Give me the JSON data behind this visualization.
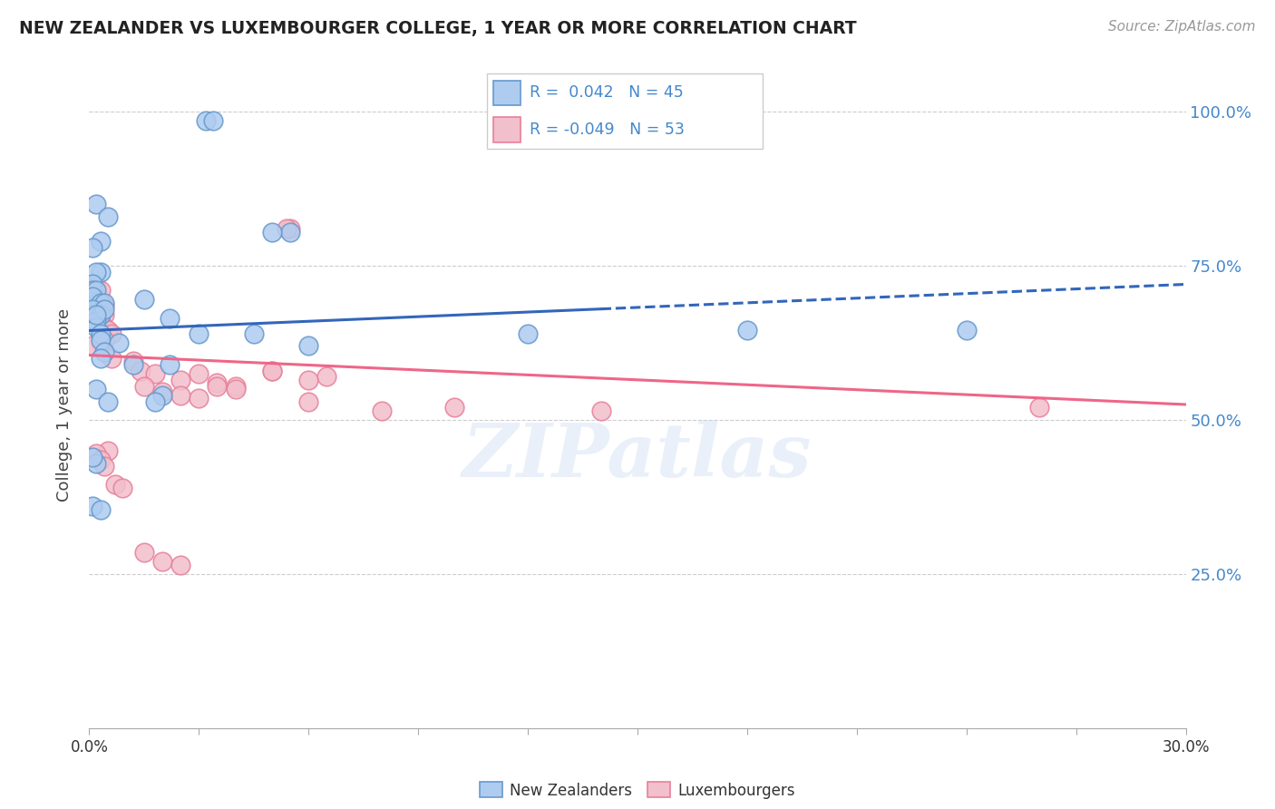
{
  "title": "NEW ZEALANDER VS LUXEMBOURGER COLLEGE, 1 YEAR OR MORE CORRELATION CHART",
  "source": "Source: ZipAtlas.com",
  "ylabel": "College, 1 year or more",
  "yticks": [
    0.0,
    0.25,
    0.5,
    0.75,
    1.0
  ],
  "ytick_labels": [
    "",
    "25.0%",
    "50.0%",
    "75.0%",
    "100.0%"
  ],
  "xmin": 0.0,
  "xmax": 0.3,
  "ymin": 0.0,
  "ymax": 1.0,
  "r_nz": 0.042,
  "n_nz": 45,
  "r_lux": -0.049,
  "n_lux": 53,
  "nz_color": "#aeccf0",
  "nz_edge": "#6699cc",
  "lux_color": "#f2bfcc",
  "lux_edge": "#e8809a",
  "nz_line_color": "#3366bb",
  "lux_line_color": "#ee6688",
  "watermark": "ZIPatlas",
  "legend_labels": [
    "New Zealanders",
    "Luxembourgers"
  ],
  "nz_x": [
    0.032,
    0.034,
    0.002,
    0.005,
    0.003,
    0.001,
    0.003,
    0.002,
    0.001,
    0.001,
    0.002,
    0.001,
    0.003,
    0.004,
    0.001,
    0.003,
    0.002,
    0.055,
    0.05,
    0.002,
    0.015,
    0.004,
    0.002,
    0.022,
    0.03,
    0.003,
    0.003,
    0.008,
    0.004,
    0.003,
    0.022,
    0.012,
    0.18,
    0.12,
    0.002,
    0.02,
    0.018,
    0.005,
    0.24,
    0.045,
    0.001,
    0.003,
    0.06,
    0.002,
    0.001
  ],
  "nz_y": [
    0.985,
    0.985,
    0.85,
    0.83,
    0.79,
    0.78,
    0.74,
    0.74,
    0.72,
    0.71,
    0.71,
    0.7,
    0.69,
    0.69,
    0.68,
    0.67,
    0.66,
    0.805,
    0.805,
    0.65,
    0.695,
    0.68,
    0.67,
    0.665,
    0.64,
    0.64,
    0.63,
    0.625,
    0.61,
    0.6,
    0.59,
    0.59,
    0.645,
    0.64,
    0.55,
    0.54,
    0.53,
    0.53,
    0.645,
    0.64,
    0.36,
    0.355,
    0.62,
    0.43,
    0.44
  ],
  "lux_x": [
    0.001,
    0.002,
    0.003,
    0.002,
    0.001,
    0.002,
    0.003,
    0.004,
    0.003,
    0.004,
    0.002,
    0.001,
    0.004,
    0.005,
    0.006,
    0.003,
    0.004,
    0.003,
    0.001,
    0.055,
    0.054,
    0.006,
    0.012,
    0.014,
    0.018,
    0.025,
    0.035,
    0.04,
    0.015,
    0.02,
    0.025,
    0.03,
    0.06,
    0.03,
    0.065,
    0.06,
    0.05,
    0.1,
    0.14,
    0.26,
    0.08,
    0.005,
    0.002,
    0.003,
    0.004,
    0.007,
    0.009,
    0.05,
    0.035,
    0.04,
    0.015,
    0.02,
    0.025
  ],
  "lux_y": [
    0.72,
    0.715,
    0.71,
    0.7,
    0.7,
    0.69,
    0.69,
    0.685,
    0.68,
    0.67,
    0.665,
    0.66,
    0.65,
    0.645,
    0.64,
    0.635,
    0.63,
    0.625,
    0.62,
    0.81,
    0.81,
    0.6,
    0.595,
    0.58,
    0.575,
    0.565,
    0.56,
    0.555,
    0.555,
    0.545,
    0.54,
    0.535,
    0.53,
    0.575,
    0.57,
    0.565,
    0.58,
    0.52,
    0.515,
    0.52,
    0.515,
    0.45,
    0.445,
    0.435,
    0.425,
    0.395,
    0.39,
    0.58,
    0.555,
    0.55,
    0.285,
    0.27,
    0.265
  ],
  "nz_line_y0": 0.645,
  "nz_line_y1": 0.72,
  "lux_line_y0": 0.605,
  "lux_line_y1": 0.525
}
